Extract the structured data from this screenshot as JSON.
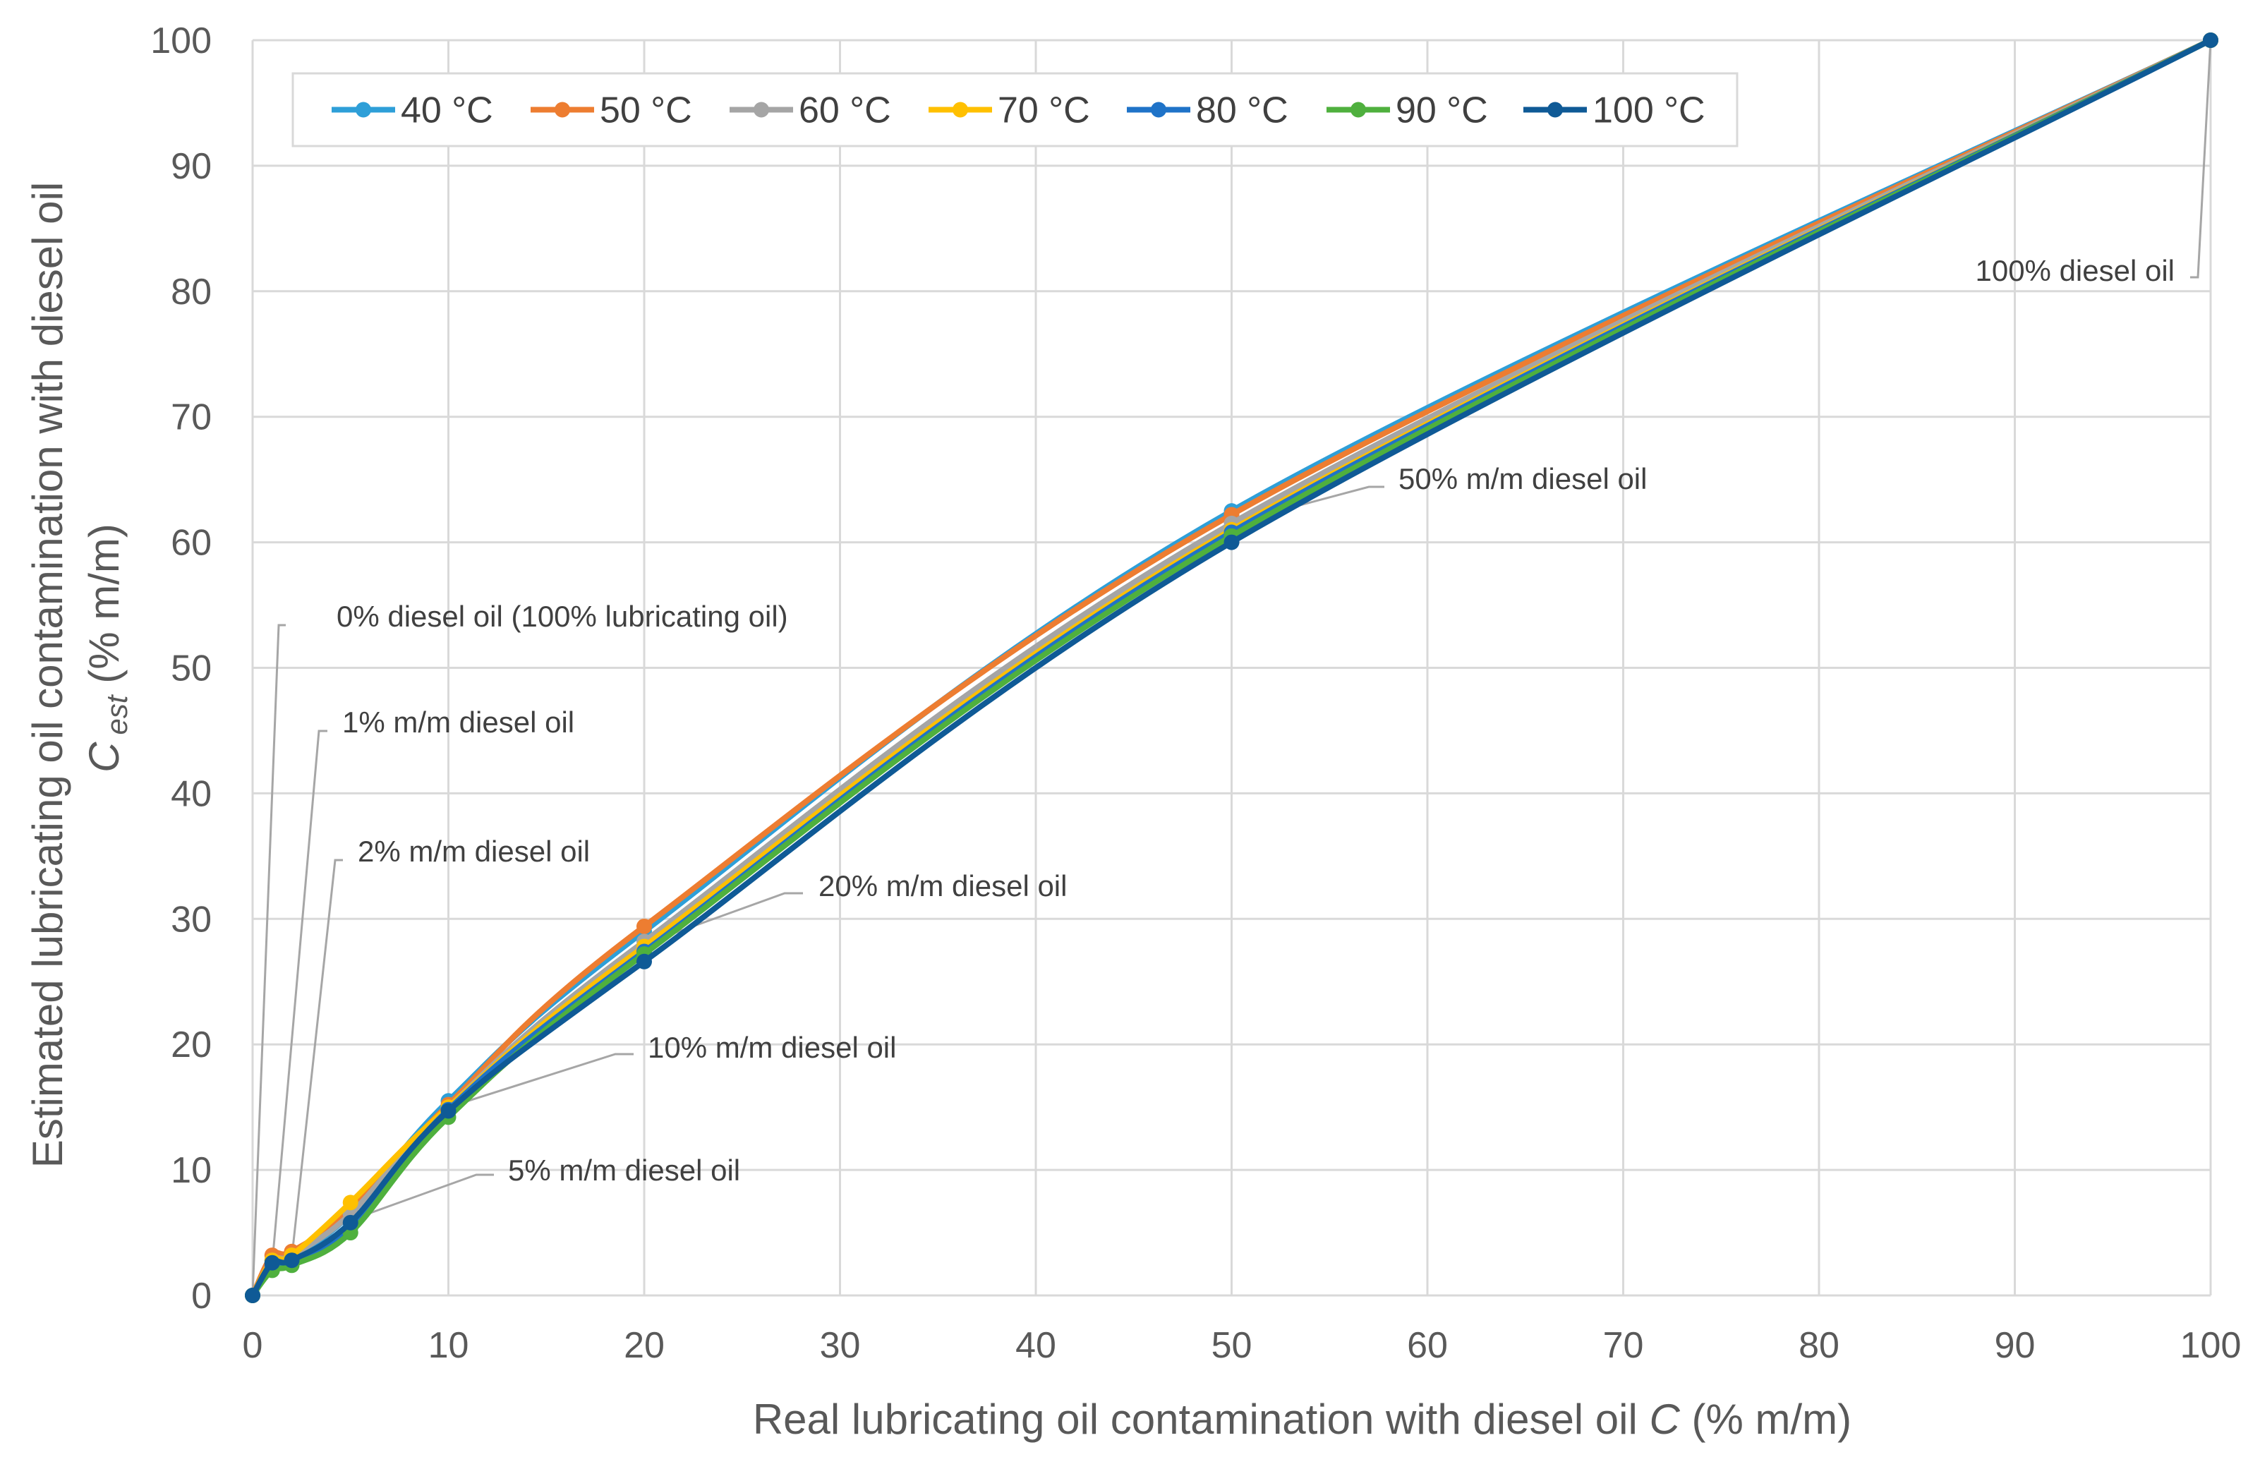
{
  "chart_data": {
    "type": "line",
    "xlabel_prefix": "Real lubricating oil contamination with diesel oil ",
    "xlabel_var": "C",
    "xlabel_suffix": " (% m/m)",
    "ylabel_line1": "Estimated lubricating oil contamination with diesel oil",
    "ylabel_var": "C",
    "ylabel_sub": "est",
    "ylabel_suffix": " (% m/m)",
    "xlim": [
      0,
      100
    ],
    "ylim": [
      0,
      100
    ],
    "xticks": [
      0,
      10,
      20,
      30,
      40,
      50,
      60,
      70,
      80,
      90,
      100
    ],
    "yticks": [
      0,
      10,
      20,
      30,
      40,
      50,
      60,
      70,
      80,
      90,
      100
    ],
    "grid": true,
    "legend_position": "top-left",
    "x": [
      0,
      1,
      2,
      5,
      10,
      20,
      50,
      100
    ],
    "series": [
      {
        "name": "40 °C",
        "color": "#2e9fd8",
        "values": [
          0,
          2.5,
          3.0,
          6.5,
          15.5,
          29.0,
          62.5,
          100
        ]
      },
      {
        "name": "50 °C",
        "color": "#ed7d31",
        "values": [
          0,
          3.2,
          3.5,
          6.8,
          15.2,
          29.4,
          62.2,
          100
        ]
      },
      {
        "name": "60 °C",
        "color": "#a5a5a5",
        "values": [
          0,
          2.8,
          3.2,
          6.5,
          15.0,
          28.2,
          61.5,
          100
        ]
      },
      {
        "name": "70 °C",
        "color": "#ffc000",
        "values": [
          0,
          2.8,
          3.2,
          7.4,
          15.0,
          27.8,
          61.0,
          100
        ]
      },
      {
        "name": "80 °C",
        "color": "#1f73c8",
        "values": [
          0,
          2.4,
          2.6,
          5.4,
          14.8,
          27.4,
          60.8,
          100
        ]
      },
      {
        "name": "90 °C",
        "color": "#4fb03e",
        "values": [
          0,
          2.0,
          2.4,
          5.0,
          14.2,
          27.2,
          60.5,
          100
        ]
      },
      {
        "name": "100 °C",
        "color": "#0f5a96",
        "values": [
          0,
          2.6,
          2.8,
          5.8,
          14.7,
          26.6,
          60.0,
          100
        ]
      }
    ],
    "annotations": [
      {
        "text": "0% diesel oil (100% lubricating oil)",
        "x": 0,
        "y": 0
      },
      {
        "text": "1% m/m diesel oil",
        "x": 1,
        "y": 2.5
      },
      {
        "text": "2% m/m diesel oil",
        "x": 2,
        "y": 3.0
      },
      {
        "text": "5% m/m diesel oil",
        "x": 5,
        "y": 6.0
      },
      {
        "text": "10% m/m diesel oil",
        "x": 10,
        "y": 15.0
      },
      {
        "text": "20% m/m diesel oil",
        "x": 20,
        "y": 28.0
      },
      {
        "text": "50% m/m diesel oil",
        "x": 50,
        "y": 61.5
      },
      {
        "text": "100% diesel oil",
        "x": 100,
        "y": 100
      }
    ]
  }
}
